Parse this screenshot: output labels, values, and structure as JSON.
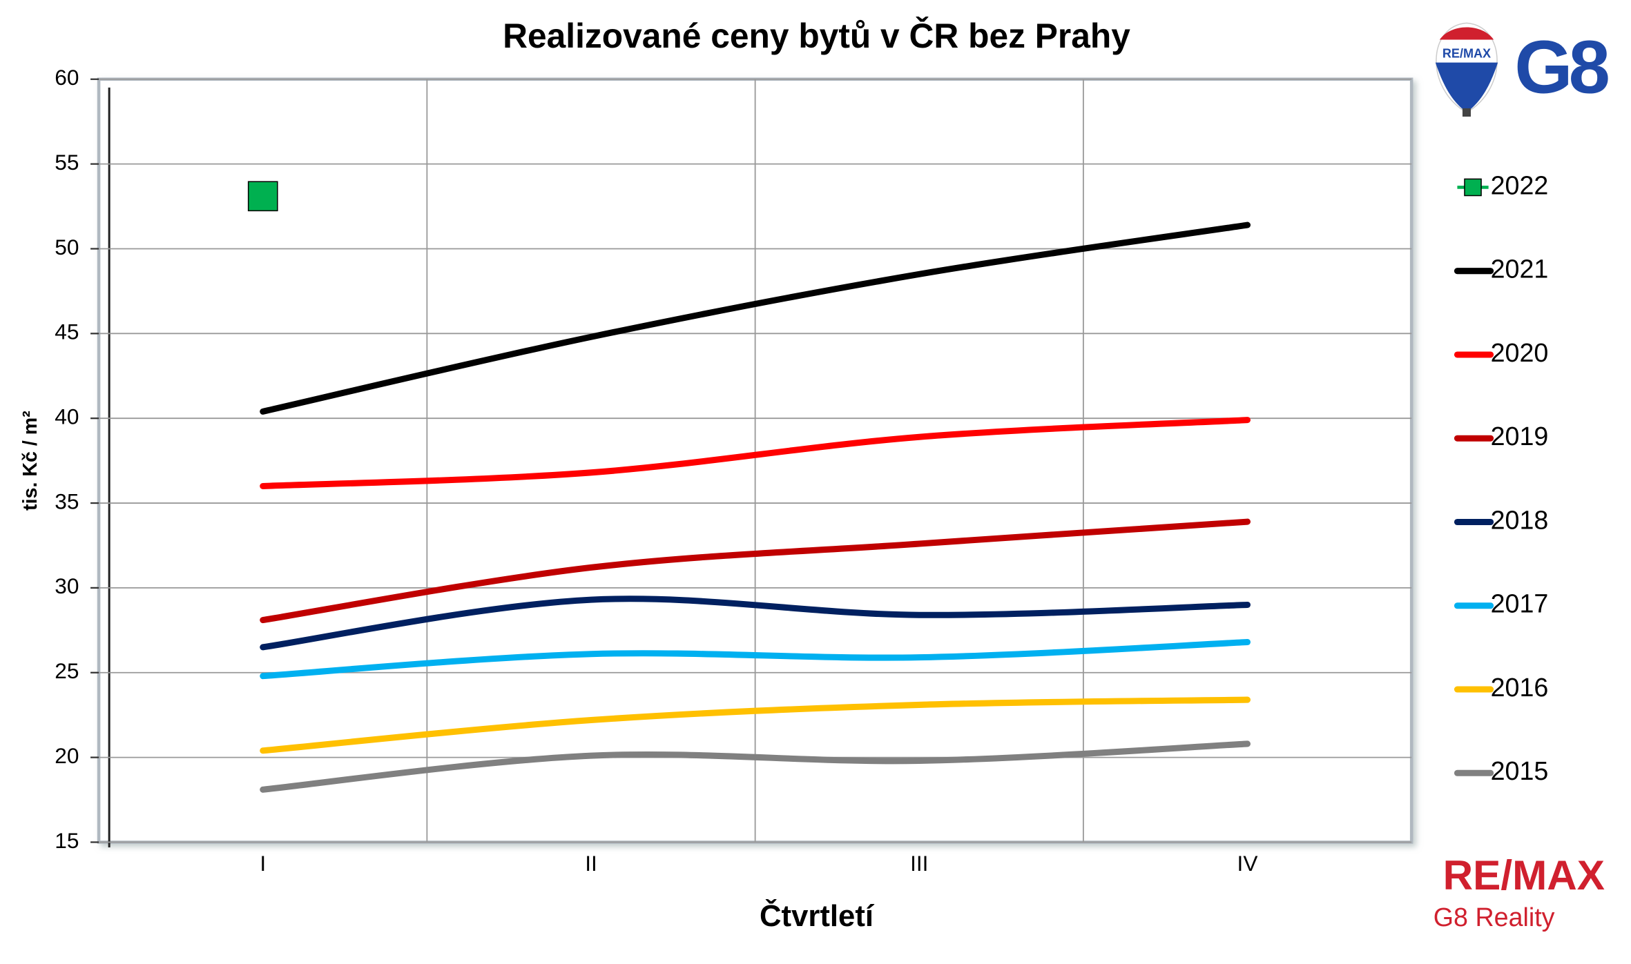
{
  "chart_data": {
    "type": "line",
    "title": "Realizované ceny bytů v ČR bez Prahy",
    "xlabel": "Čtvrtletí",
    "ylabel": "tis. Kč / m²",
    "categories": [
      "I",
      "II",
      "III",
      "IV"
    ],
    "ylim": [
      15,
      60
    ],
    "yticks": [
      15,
      20,
      25,
      30,
      35,
      40,
      45,
      50,
      55,
      60
    ],
    "grid": true,
    "legend": "right",
    "series": [
      {
        "name": "2022",
        "color": "#00b050",
        "marker": "square",
        "values": [
          53.1,
          null,
          null,
          null
        ]
      },
      {
        "name": "2021",
        "color": "#000000",
        "values": [
          40.4,
          44.8,
          48.5,
          51.4
        ]
      },
      {
        "name": "2020",
        "color": "#ff0000",
        "values": [
          36.0,
          36.8,
          38.9,
          39.9
        ]
      },
      {
        "name": "2019",
        "color": "#c00000",
        "values": [
          28.1,
          31.2,
          32.6,
          33.9
        ]
      },
      {
        "name": "2018",
        "color": "#002060",
        "values": [
          26.5,
          29.3,
          28.4,
          29.0
        ]
      },
      {
        "name": "2017",
        "color": "#00b0f0",
        "values": [
          24.8,
          26.1,
          25.9,
          26.8
        ]
      },
      {
        "name": "2016",
        "color": "#ffc000",
        "values": [
          20.4,
          22.2,
          23.1,
          23.4
        ]
      },
      {
        "name": "2015",
        "color": "#808080",
        "values": [
          18.1,
          20.1,
          19.8,
          20.8
        ]
      }
    ]
  },
  "logos": {
    "top_brand": "RE/MAX",
    "top_office": "G8",
    "bottom_brand": "RE/MAX",
    "bottom_office": "G8 Reality"
  }
}
